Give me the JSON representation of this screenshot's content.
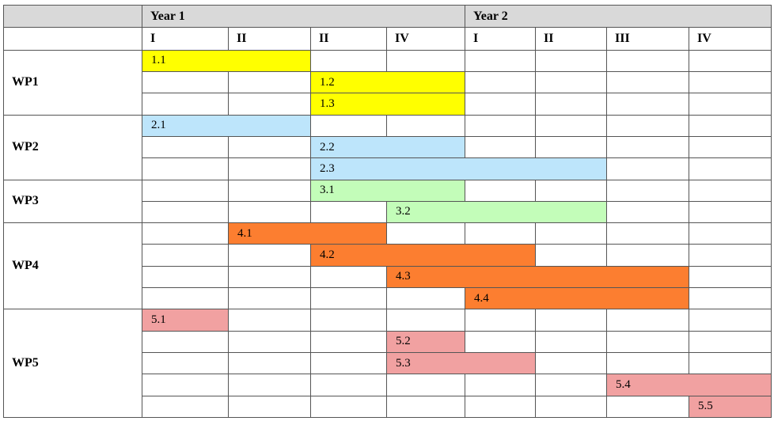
{
  "header": {
    "years": [
      "Year 1",
      "Year 2"
    ],
    "quarters": [
      "I",
      "II",
      "II",
      "IV",
      "I",
      "II",
      "III",
      "IV"
    ]
  },
  "colors": {
    "WP1": "#ffff00",
    "WP2": "#bde5fb",
    "WP3": "#c3fdb9",
    "WP4": "#fc7e30",
    "WP5": "#f1a1a1",
    "header_bg": "#d9d9d9",
    "grid": "#555555"
  },
  "work_packages": [
    {
      "label": "WP1",
      "tasks": [
        {
          "label": "1.1",
          "start_quarter": 1,
          "end_quarter": 2
        },
        {
          "label": "1.2",
          "start_quarter": 3,
          "end_quarter": 4
        },
        {
          "label": "1.3",
          "start_quarter": 3,
          "end_quarter": 4
        }
      ]
    },
    {
      "label": "WP2",
      "tasks": [
        {
          "label": "2.1",
          "start_quarter": 1,
          "end_quarter": 2
        },
        {
          "label": "2.2",
          "start_quarter": 3,
          "end_quarter": 4
        },
        {
          "label": "2.3",
          "start_quarter": 3,
          "end_quarter": 6
        }
      ]
    },
    {
      "label": "WP3",
      "tasks": [
        {
          "label": "3.1",
          "start_quarter": 3,
          "end_quarter": 4
        },
        {
          "label": "3.2",
          "start_quarter": 4,
          "end_quarter": 6
        }
      ]
    },
    {
      "label": "WP4",
      "tasks": [
        {
          "label": "4.1",
          "start_quarter": 2,
          "end_quarter": 3
        },
        {
          "label": "4.2",
          "start_quarter": 3,
          "end_quarter": 5
        },
        {
          "label": "4.3",
          "start_quarter": 4,
          "end_quarter": 7
        },
        {
          "label": "4.4",
          "start_quarter": 5,
          "end_quarter": 7
        }
      ]
    },
    {
      "label": "WP5",
      "tasks": [
        {
          "label": "5.1",
          "start_quarter": 1,
          "end_quarter": 1
        },
        {
          "label": "5.2",
          "start_quarter": 4,
          "end_quarter": 4
        },
        {
          "label": "5.3",
          "start_quarter": 4,
          "end_quarter": 5
        },
        {
          "label": "5.4",
          "start_quarter": 7,
          "end_quarter": 8
        },
        {
          "label": "5.5",
          "start_quarter": 8,
          "end_quarter": 8
        }
      ]
    }
  ]
}
